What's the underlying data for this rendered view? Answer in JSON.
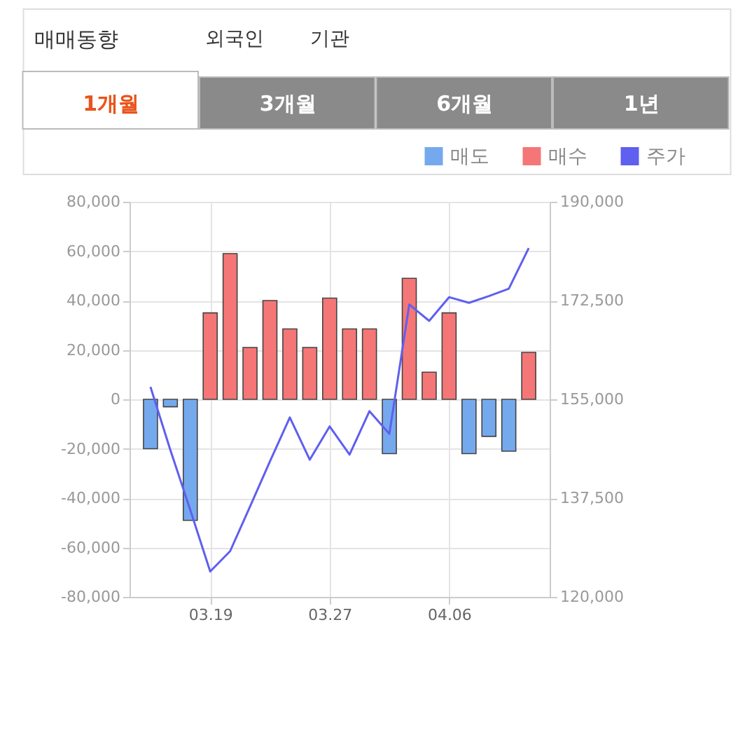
{
  "chart_data": {
    "type": "bar",
    "title": "매매동향",
    "annotations": [
      "외국인",
      "기관",
      "1개월",
      "3개월",
      "6개월",
      "1년"
    ],
    "categories": [
      null,
      null,
      null,
      "03.19",
      null,
      null,
      null,
      null,
      null,
      "03.27",
      null,
      null,
      null,
      null,
      null,
      "04.06",
      null,
      null,
      null,
      null
    ],
    "series": [
      {
        "name": "매도",
        "color": "#75a9ee",
        "values": [
          -20000,
          -3000,
          -49000,
          null,
          null,
          null,
          null,
          null,
          null,
          null,
          null,
          null,
          -22000,
          null,
          null,
          null,
          -22000,
          -15000,
          -21000,
          null
        ]
      },
      {
        "name": "매수",
        "color": "#f57676",
        "values": [
          null,
          null,
          null,
          35000,
          59000,
          21000,
          40000,
          28500,
          21000,
          41000,
          28500,
          28500,
          null,
          49000,
          11000,
          35000,
          null,
          null,
          null,
          19000
        ]
      },
      {
        "name": "주가",
        "color": "#5f5ff0",
        "type": "line",
        "axis": "y2",
        "values": [
          157200,
          146000,
          135400,
          124500,
          128100,
          136000,
          144000,
          151800,
          144300,
          150200,
          145200,
          152900,
          148900,
          171800,
          168900,
          173100,
          172100,
          173300,
          174600,
          181800
        ]
      }
    ],
    "ylim": [
      -80000,
      80000
    ],
    "yticks": [
      {
        "value": -80000,
        "label": "-80,000"
      },
      {
        "value": -60000,
        "label": "-60,000"
      },
      {
        "value": -40000,
        "label": "-40,000"
      },
      {
        "value": -20000,
        "label": "-20,000"
      },
      0,
      {
        "value": 20000,
        "label": "20,000"
      },
      {
        "value": 40000,
        "label": "40,000"
      },
      {
        "value": 60000,
        "label": "60,000"
      },
      {
        "value": 80000,
        "label": "80,000"
      }
    ],
    "y2lim": [
      120000,
      190000
    ],
    "y2ticks": [
      {
        "value": 120000,
        "label": "120,000"
      },
      {
        "value": 137500,
        "label": "137,500"
      },
      {
        "value": 155000,
        "label": "155,000"
      },
      {
        "value": 172500,
        "label": "172,500"
      },
      {
        "value": 190000,
        "label": "190,000"
      }
    ],
    "grid": true,
    "legend": "top right"
  }
}
